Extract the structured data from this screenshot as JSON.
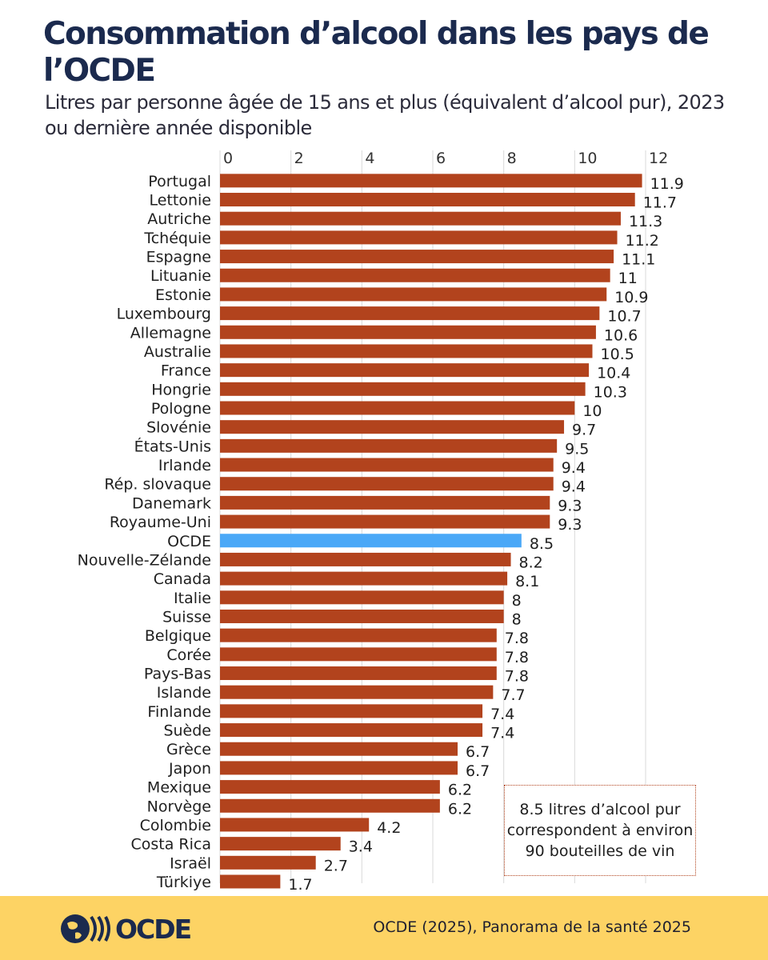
{
  "title": "Consommation d’alcool dans les pays de l’OCDE",
  "subtitle": "Litres par personne âgée de 15 ans et plus (équivalent d’alcool pur), 2023 ou dernière année disponible",
  "chart_data": {
    "type": "bar",
    "orientation": "horizontal",
    "xlim": [
      0,
      12
    ],
    "xticks": [
      "0",
      "2",
      "4",
      "6",
      "8",
      "10",
      "12"
    ],
    "grid": true,
    "categories": [
      "Portugal",
      "Lettonie",
      "Autriche",
      "Tchéquie",
      "Espagne",
      "Lituanie",
      "Estonie",
      "Luxembourg",
      "Allemagne",
      "Australie",
      "France",
      "Hongrie",
      "Pologne",
      "Slovénie",
      "États-Unis",
      "Irlande",
      "Rép. slovaque",
      "Danemark",
      "Royaume-Uni",
      "OCDE",
      "Nouvelle-Zélande",
      "Canada",
      "Italie",
      "Suisse",
      "Belgique",
      "Corée",
      "Pays-Bas",
      "Islande",
      "Finlande",
      "Suède",
      "Grèce",
      "Japon",
      "Mexique",
      "Norvège",
      "Colombie",
      "Costa Rica",
      "Israël",
      "Türkiye"
    ],
    "values": [
      11.9,
      11.7,
      11.3,
      11.2,
      11.1,
      11,
      10.9,
      10.7,
      10.6,
      10.5,
      10.4,
      10.3,
      10,
      9.7,
      9.5,
      9.4,
      9.4,
      9.3,
      9.3,
      8.5,
      8.2,
      8.1,
      8,
      8,
      7.8,
      7.8,
      7.8,
      7.7,
      7.4,
      7.4,
      6.7,
      6.7,
      6.2,
      6.2,
      4.2,
      3.4,
      2.7,
      1.7
    ],
    "bar_color": "#b2431d",
    "highlight": {
      "category": "OCDE",
      "color": "#4aa8f7"
    },
    "annotation": "8.5 litres d’alcool pur correspondent à environ 90 bouteilles de vin"
  },
  "footer": {
    "logo_text": "OCDE",
    "source": "OCDE (2025), Panorama de la santé 2025"
  }
}
